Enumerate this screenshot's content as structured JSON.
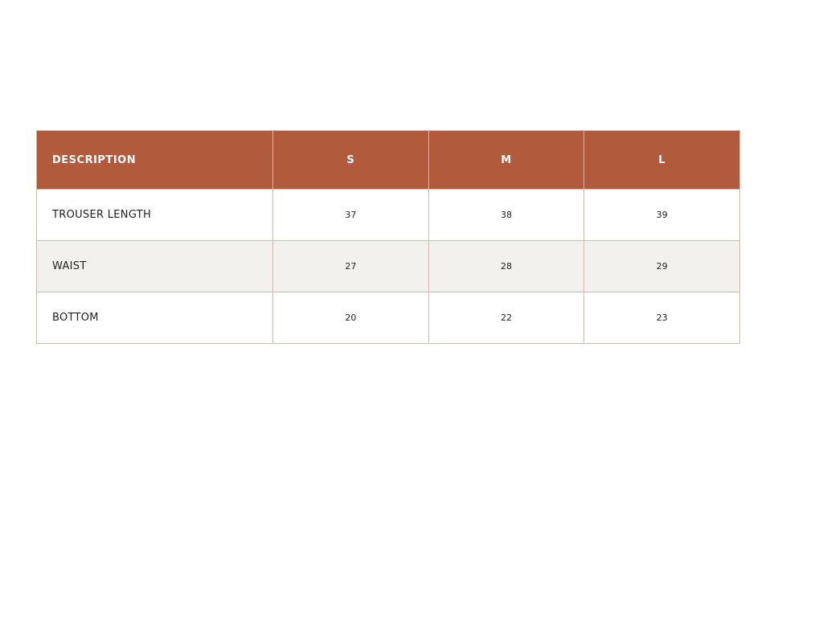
{
  "table": {
    "header": [
      "DESCRIPTION",
      "S",
      "M",
      "L"
    ],
    "rows": [
      [
        "TROUSER LENGTH",
        37,
        38,
        39
      ],
      [
        "WAIST",
        27,
        28,
        29
      ],
      [
        "BOTTOM",
        20,
        22,
        23
      ]
    ]
  }
}
